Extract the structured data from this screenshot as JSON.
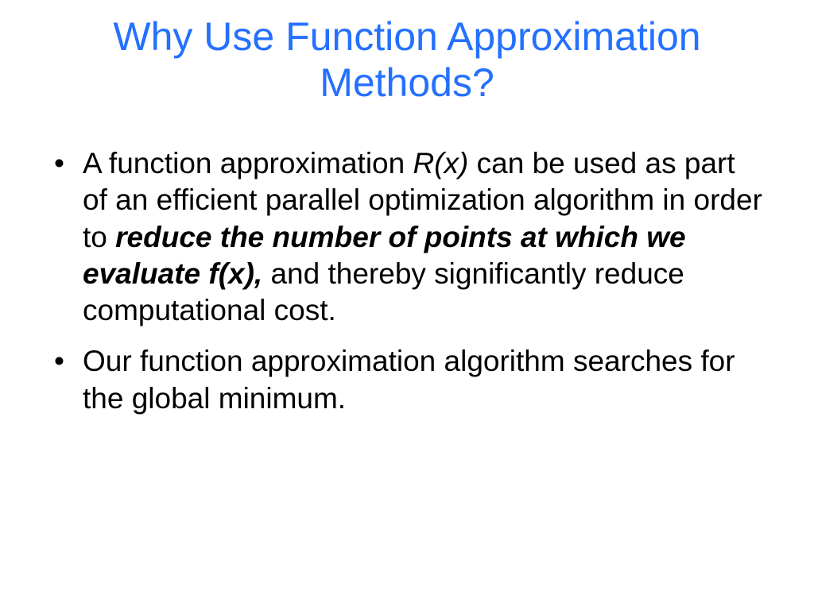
{
  "slide": {
    "title": "Why Use Function Approximation Methods?",
    "title_color": "#2470ff",
    "title_fontsize": 50,
    "background_color": "#ffffff",
    "body_color": "#000000",
    "body_fontsize": 37,
    "bullets": [
      {
        "segments": [
          {
            "text": "A function approximation  ",
            "style": "normal"
          },
          {
            "text": "R(x)",
            "style": "italic"
          },
          {
            "text": " can be used as part of  an efficient parallel optimization algorithm in order to ",
            "style": "normal"
          },
          {
            "text": "reduce the number of points at which we evaluate f(x),",
            "style": "bold-italic"
          },
          {
            "text": " and thereby significantly reduce computational cost.",
            "style": "normal"
          }
        ]
      },
      {
        "segments": [
          {
            "text": "Our function approximation algorithm searches for the global minimum.",
            "style": "normal"
          }
        ]
      }
    ]
  }
}
